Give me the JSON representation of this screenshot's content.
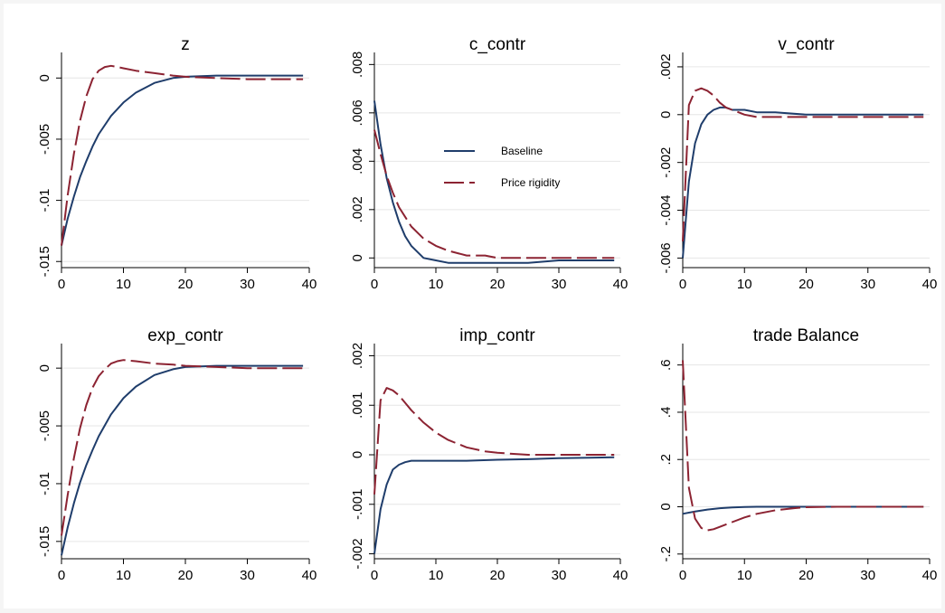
{
  "legend": {
    "placement": "inside-top-right of c_contr panel",
    "entries": [
      "Baseline",
      "Price rigidity"
    ]
  },
  "colors": {
    "baseline": "#1f3d6b",
    "price_rigidity": "#8c2332",
    "grid": "#e6e6e6",
    "axis": "#000000"
  },
  "chart_data": [
    {
      "type": "line",
      "title": "z",
      "xlabel": "",
      "ylabel": "",
      "xlim": [
        0,
        40
      ],
      "ylim": [
        -0.0155,
        0.0015
      ],
      "grid": true,
      "xticks": [
        0,
        10,
        20,
        30,
        40
      ],
      "xtick_labels": [
        "0",
        "10",
        "20",
        "30",
        "40"
      ],
      "yticks": [
        0,
        -0.005,
        -0.01,
        -0.015
      ],
      "ytick_labels": [
        "0",
        "-.005",
        "-.01",
        "-.015"
      ],
      "series": [
        {
          "name": "Baseline",
          "style": "solid",
          "x": [
            0,
            1,
            2,
            3,
            4,
            5,
            6,
            8,
            10,
            12,
            15,
            18,
            20,
            25,
            30,
            35,
            39
          ],
          "y": [
            -0.0137,
            -0.0115,
            -0.0097,
            -0.0081,
            -0.0068,
            -0.0056,
            -0.0046,
            -0.0031,
            -0.002,
            -0.0012,
            -0.0004,
            0,
            0.0001,
            0.0002,
            0.0002,
            0.0002,
            0.0002
          ]
        },
        {
          "name": "Price rigidity",
          "style": "dash",
          "x": [
            0,
            1,
            2,
            3,
            4,
            5,
            6,
            7,
            8,
            9,
            10,
            12,
            15,
            18,
            20,
            25,
            30,
            35,
            39
          ],
          "y": [
            -0.0137,
            -0.0096,
            -0.0062,
            -0.0035,
            -0.0015,
            -0.0001,
            0.0006,
            0.0009,
            0.001,
            0.0009,
            0.0008,
            0.0006,
            0.0004,
            0.0002,
            0.0001,
            0,
            -0.0001,
            -0.0001,
            -0.0001
          ]
        }
      ]
    },
    {
      "type": "line",
      "title": "c_contr",
      "xlabel": "",
      "ylabel": "",
      "xlim": [
        0,
        40
      ],
      "ylim": [
        -0.0004,
        0.0082
      ],
      "grid": true,
      "xticks": [
        0,
        10,
        20,
        30,
        40
      ],
      "xtick_labels": [
        "0",
        "10",
        "20",
        "30",
        "40"
      ],
      "yticks": [
        0,
        0.002,
        0.004,
        0.006,
        0.008
      ],
      "ytick_labels": [
        "0",
        ".002",
        ".004",
        ".006",
        ".008"
      ],
      "series": [
        {
          "name": "Baseline",
          "style": "solid",
          "x": [
            0,
            1,
            2,
            3,
            4,
            5,
            6,
            8,
            10,
            12,
            15,
            20,
            25,
            30,
            35,
            39
          ],
          "y": [
            0.0065,
            0.0047,
            0.0033,
            0.0023,
            0.0015,
            0.0009,
            0.0005,
            0,
            -0.0001,
            -0.0002,
            -0.0002,
            -0.0002,
            -0.0002,
            -0.0001,
            -0.0001,
            -0.0001
          ]
        },
        {
          "name": "Price rigidity",
          "style": "dash",
          "x": [
            0,
            1,
            2,
            3,
            4,
            5,
            6,
            8,
            10,
            12,
            15,
            18,
            20,
            25,
            30,
            35,
            39
          ],
          "y": [
            0.0053,
            0.0043,
            0.0034,
            0.0027,
            0.0021,
            0.0017,
            0.0013,
            0.0008,
            0.0005,
            0.0003,
            0.0001,
            0.0001,
            0,
            0,
            0,
            0,
            0
          ]
        }
      ]
    },
    {
      "type": "line",
      "title": "v_contr",
      "xlabel": "",
      "ylabel": "",
      "xlim": [
        0,
        40
      ],
      "ylim": [
        -0.0064,
        0.0023
      ],
      "grid": true,
      "xticks": [
        0,
        10,
        20,
        30,
        40
      ],
      "xtick_labels": [
        "0",
        "10",
        "20",
        "30",
        "40"
      ],
      "yticks": [
        0.002,
        0,
        -0.002,
        -0.004,
        -0.006
      ],
      "ytick_labels": [
        ".002",
        "0",
        "-.002",
        "-.004",
        "-.006"
      ],
      "series": [
        {
          "name": "Baseline",
          "style": "solid",
          "x": [
            0,
            1,
            2,
            3,
            4,
            5,
            6,
            7,
            8,
            10,
            12,
            15,
            20,
            25,
            30,
            35,
            39
          ],
          "y": [
            -0.006,
            -0.0028,
            -0.0012,
            -0.0004,
            0,
            0.0002,
            0.0003,
            0.0003,
            0.0002,
            0.0002,
            0.0001,
            0.0001,
            0,
            0,
            0,
            0,
            0
          ]
        },
        {
          "name": "Price rigidity",
          "style": "dash",
          "x": [
            0,
            1,
            2,
            3,
            4,
            5,
            6,
            7,
            8,
            10,
            12,
            15,
            20,
            25,
            30,
            35,
            39
          ],
          "y": [
            -0.0053,
            0.0004,
            0.001,
            0.0011,
            0.001,
            0.0008,
            0.0005,
            0.0003,
            0.0002,
            0,
            -0.0001,
            -0.0001,
            -0.0001,
            -0.0001,
            -0.0001,
            -0.0001,
            -0.0001
          ]
        }
      ]
    },
    {
      "type": "line",
      "title": "exp_contr",
      "xlabel": "",
      "ylabel": "",
      "xlim": [
        0,
        40
      ],
      "ylim": [
        -0.0165,
        0.0015
      ],
      "grid": true,
      "xticks": [
        0,
        10,
        20,
        30,
        40
      ],
      "xtick_labels": [
        "0",
        "10",
        "20",
        "30",
        "40"
      ],
      "yticks": [
        0,
        -0.005,
        -0.01,
        -0.015
      ],
      "ytick_labels": [
        "0",
        "-.005",
        "-.01",
        "-.015"
      ],
      "series": [
        {
          "name": "Baseline",
          "style": "solid",
          "x": [
            0,
            1,
            2,
            3,
            4,
            5,
            6,
            8,
            10,
            12,
            15,
            18,
            20,
            25,
            30,
            35,
            39
          ],
          "y": [
            -0.0162,
            -0.0138,
            -0.0117,
            -0.0099,
            -0.0084,
            -0.0071,
            -0.0059,
            -0.004,
            -0.0026,
            -0.0016,
            -0.0006,
            -0.0001,
            0.0001,
            0.0002,
            0.0002,
            0.0002,
            0.0002
          ]
        },
        {
          "name": "Price rigidity",
          "style": "dash",
          "x": [
            0,
            1,
            2,
            3,
            4,
            5,
            6,
            7,
            8,
            9,
            10,
            12,
            15,
            18,
            20,
            25,
            30,
            35,
            39
          ],
          "y": [
            -0.0145,
            -0.011,
            -0.0078,
            -0.0052,
            -0.0032,
            -0.0017,
            -0.0007,
            -0.0001,
            0.0004,
            0.0006,
            0.0007,
            0.0006,
            0.0004,
            0.0003,
            0.0002,
            0.0001,
            0,
            0,
            0
          ]
        }
      ]
    },
    {
      "type": "line",
      "title": "imp_contr",
      "xlabel": "",
      "ylabel": "",
      "xlim": [
        0,
        40
      ],
      "ylim": [
        -0.0021,
        0.0021
      ],
      "grid": true,
      "xticks": [
        0,
        10,
        20,
        30,
        40
      ],
      "xtick_labels": [
        "0",
        "10",
        "20",
        "30",
        "40"
      ],
      "yticks": [
        0.002,
        0.001,
        0,
        -0.001,
        -0.002
      ],
      "ytick_labels": [
        ".002",
        ".001",
        "0",
        "-.001",
        "-.002"
      ],
      "series": [
        {
          "name": "Baseline",
          "style": "solid",
          "x": [
            0,
            1,
            2,
            3,
            4,
            5,
            6,
            8,
            10,
            15,
            20,
            25,
            30,
            35,
            39
          ],
          "y": [
            -0.002,
            -0.0011,
            -0.0006,
            -0.0003,
            -0.0002,
            -0.00015,
            -0.00012,
            -0.00012,
            -0.00012,
            -0.00012,
            -0.0001,
            -9e-05,
            -7e-05,
            -6e-05,
            -5e-05
          ]
        },
        {
          "name": "Price rigidity",
          "style": "dash",
          "x": [
            0,
            1,
            2,
            3,
            4,
            5,
            6,
            8,
            10,
            12,
            15,
            18,
            20,
            25,
            30,
            35,
            39
          ],
          "y": [
            -0.0008,
            0.0011,
            0.00135,
            0.0013,
            0.0012,
            0.00105,
            0.0009,
            0.00065,
            0.00045,
            0.0003,
            0.00015,
            7e-05,
            4e-05,
            0,
            0,
            0,
            0
          ]
        }
      ]
    },
    {
      "type": "line",
      "title": "trade Balance",
      "xlabel": "",
      "ylabel": "",
      "xlim": [
        0,
        40
      ],
      "ylim": [
        -0.22,
        0.66
      ],
      "grid": true,
      "xticks": [
        0,
        10,
        20,
        30,
        40
      ],
      "xtick_labels": [
        "0",
        "10",
        "20",
        "30",
        "40"
      ],
      "yticks": [
        0.6,
        0.4,
        0.2,
        0,
        -0.2
      ],
      "ytick_labels": [
        ".6",
        ".4",
        ".2",
        "0",
        "-.2"
      ],
      "series": [
        {
          "name": "Baseline",
          "style": "solid",
          "x": [
            0,
            2,
            4,
            6,
            8,
            10,
            12,
            15,
            20,
            25,
            30,
            35,
            39
          ],
          "y": [
            -0.03,
            -0.02,
            -0.012,
            -0.006,
            -0.003,
            -0.001,
            0,
            0,
            0,
            0,
            0,
            0,
            0
          ]
        },
        {
          "name": "Price rigidity",
          "style": "dash",
          "x": [
            0,
            1,
            2,
            3,
            4,
            5,
            6,
            8,
            10,
            12,
            15,
            18,
            20,
            25,
            30,
            35,
            39
          ],
          "y": [
            0.62,
            0.08,
            -0.05,
            -0.09,
            -0.1,
            -0.095,
            -0.085,
            -0.065,
            -0.045,
            -0.03,
            -0.015,
            -0.006,
            -0.002,
            0,
            0,
            0,
            0
          ]
        }
      ]
    }
  ]
}
